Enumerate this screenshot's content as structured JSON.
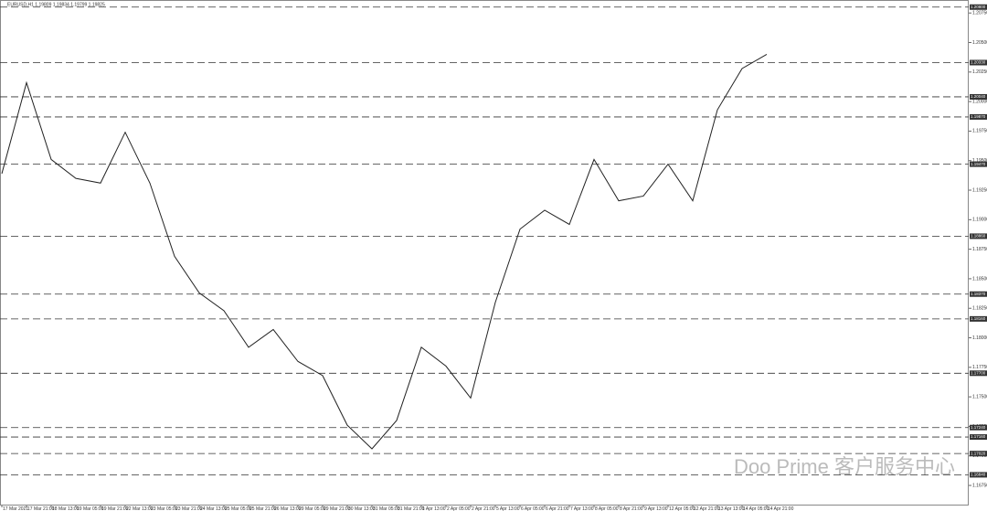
{
  "chart_data": {
    "type": "line",
    "header": "EURUSD,H1  1.19809 1.19834 1.19799 1.19825",
    "watermark": "Doo Prime 客户服务中心",
    "categories": [
      "17 Mar 2021",
      "17 Mar 21:00",
      "18 Mar 13:00",
      "19 Mar 05:00",
      "19 Mar 21:00",
      "22 Mar 13:00",
      "23 Mar 05:00",
      "23 Mar 21:00",
      "24 Mar 13:00",
      "25 Mar 05:00",
      "25 Mar 21:00",
      "26 Mar 13:00",
      "29 Mar 05:00",
      "29 Mar 21:00",
      "30 Mar 13:00",
      "31 Mar 05:00",
      "31 Mar 21:00",
      "1 Apr 13:00",
      "2 Apr 05:00",
      "2 Apr 21:00",
      "5 Apr 13:00",
      "6 Apr 05:00",
      "6 Apr 21:00",
      "7 Apr 13:00",
      "8 Apr 05:00",
      "8 Apr 21:00",
      "9 Apr 13:00",
      "12 Apr 05:00",
      "12 Apr 21:00",
      "13 Apr 13:00",
      "14 Apr 05:00",
      "14 Apr 21:00"
    ],
    "series": [
      {
        "name": "EURUSD,H1",
        "color": "#222222",
        "values": [
          1.1939,
          1.2016,
          1.1951,
          1.1935,
          1.1931,
          1.1974,
          1.1931,
          1.1869,
          1.1838,
          1.1823,
          1.1792,
          1.1807,
          1.178,
          1.1768,
          1.1726,
          1.1706,
          1.173,
          1.1792,
          1.1776,
          1.1749,
          1.183,
          1.1892,
          1.1908,
          1.1896,
          1.1951,
          1.1916,
          1.192,
          1.1947,
          1.1916,
          1.1993,
          1.2028,
          1.204
        ]
      }
    ],
    "levels": [
      {
        "value": 1.208,
        "label": "1.20800"
      },
      {
        "value": 1.2033,
        "label": "1.20330"
      },
      {
        "value": 1.2004,
        "label": "1.20040"
      },
      {
        "value": 1.1987,
        "label": "1.19870"
      },
      {
        "value": 1.1947,
        "label": "1.19470"
      },
      {
        "value": 1.1886,
        "label": "1.18860"
      },
      {
        "value": 1.1837,
        "label": "1.18370"
      },
      {
        "value": 1.1816,
        "label": "1.18160"
      },
      {
        "value": 1.177,
        "label": "1.17700"
      },
      {
        "value": 1.1724,
        "label": "1.17240"
      },
      {
        "value": 1.1716,
        "label": "1.17160"
      },
      {
        "value": 1.1702,
        "label": "1.17020"
      },
      {
        "value": 1.1684,
        "label": "1.16840"
      }
    ],
    "ylim": [
      1.1658,
      1.2086
    ],
    "yticks": [
      {
        "value": 1.1675,
        "label": "1.16750"
      },
      {
        "value": 1.17,
        "label": "1.17000"
      },
      {
        "value": 1.1725,
        "label": "1.17250"
      },
      {
        "value": 1.175,
        "label": "1.17500"
      },
      {
        "value": 1.1775,
        "label": "1.17750"
      },
      {
        "value": 1.18,
        "label": "1.18000"
      },
      {
        "value": 1.1825,
        "label": "1.18250"
      },
      {
        "value": 1.185,
        "label": "1.18500"
      },
      {
        "value": 1.1875,
        "label": "1.18750"
      },
      {
        "value": 1.19,
        "label": "1.19000"
      },
      {
        "value": 1.1925,
        "label": "1.19250"
      },
      {
        "value": 1.195,
        "label": "1.19500"
      },
      {
        "value": 1.1975,
        "label": "1.19750"
      },
      {
        "value": 1.2,
        "label": "1.20000"
      },
      {
        "value": 1.2025,
        "label": "1.20250"
      },
      {
        "value": 1.205,
        "label": "1.20500"
      },
      {
        "value": 1.2075,
        "label": "1.20750"
      }
    ]
  }
}
